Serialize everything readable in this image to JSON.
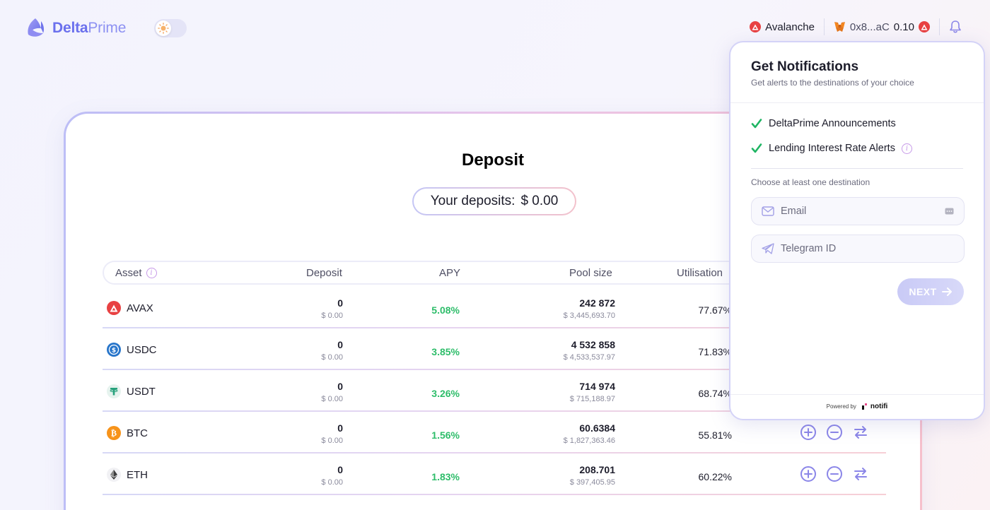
{
  "header": {
    "logo_bold": "Delta",
    "logo_light": "Prime",
    "network": "Avalanche",
    "wallet_address": "0x8...aC",
    "wallet_balance": "0.10"
  },
  "deposit": {
    "title": "Deposit",
    "your_deposits_label": "Your deposits:",
    "your_deposits_value": "$ 0.00",
    "columns": [
      "Asset",
      "Deposit",
      "APY",
      "Pool size",
      "Utilisation"
    ],
    "rows": [
      {
        "symbol": "AVAX",
        "deposit": "0",
        "deposit_usd": "$ 0.00",
        "apy": "5.08%",
        "pool": "242 872",
        "pool_usd": "$ 3,445,693.70",
        "utilisation": "77.67%",
        "color": "#e84142"
      },
      {
        "symbol": "USDC",
        "deposit": "0",
        "deposit_usd": "$ 0.00",
        "apy": "3.85%",
        "pool": "4 532 858",
        "pool_usd": "$ 4,533,537.97",
        "utilisation": "71.83%",
        "color": "#2775ca"
      },
      {
        "symbol": "USDT",
        "deposit": "0",
        "deposit_usd": "$ 0.00",
        "apy": "3.26%",
        "pool": "714 974",
        "pool_usd": "$ 715,188.97",
        "utilisation": "68.74%",
        "color": "#26a17b"
      },
      {
        "symbol": "BTC",
        "deposit": "0",
        "deposit_usd": "$ 0.00",
        "apy": "1.56%",
        "pool": "60.6384",
        "pool_usd": "$ 1,827,363.46",
        "utilisation": "55.81%",
        "color": "#f7931a"
      },
      {
        "symbol": "ETH",
        "deposit": "0",
        "deposit_usd": "$ 0.00",
        "apy": "1.83%",
        "pool": "208.701",
        "pool_usd": "$ 397,405.95",
        "utilisation": "60.22%",
        "color": "#3c3c3d"
      }
    ]
  },
  "notifications": {
    "title": "Get Notifications",
    "subtitle": "Get alerts to the destinations of your choice",
    "items": [
      {
        "label": "DeltaPrime Announcements"
      },
      {
        "label": "Lending Interest Rate Alerts"
      }
    ],
    "choose_label": "Choose at least one destination",
    "email_placeholder": "Email",
    "telegram_placeholder": "Telegram ID",
    "next_label": "NEXT",
    "powered_by": "Powered by",
    "brand": "notifi"
  },
  "colors": {
    "accent": "#6b70ed",
    "apy_green": "#2ebd6a",
    "check_green": "#1fb563",
    "action_purple": "#8b86e8"
  }
}
